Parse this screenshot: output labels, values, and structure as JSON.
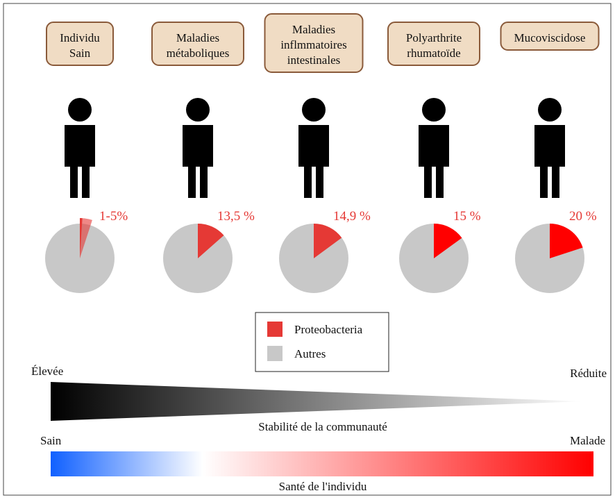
{
  "panels": [
    {
      "title": [
        "Individu",
        "Sain"
      ],
      "range": [
        1,
        5
      ],
      "label": "1-5%",
      "color": "#e53935"
    },
    {
      "title": [
        "Maladies",
        "métaboliques"
      ],
      "percent": 13.5,
      "label": "13,5 %",
      "color": "#e53935"
    },
    {
      "title": [
        "Maladies",
        "inflmmatoires",
        "intestinales"
      ],
      "percent": 14.9,
      "label": "14,9 %",
      "color": "#e53935"
    },
    {
      "title": [
        "Polyarthrite",
        "rhumatoïde"
      ],
      "percent": 15,
      "label": "15 %",
      "color": "#ff0000"
    },
    {
      "title": [
        "Mucoviscidose"
      ],
      "percent": 20,
      "label": "20 %",
      "color": "#ff0000"
    }
  ],
  "legend": [
    {
      "name": "Proteobacteria",
      "color": "#e53935"
    },
    {
      "name": "Autres",
      "color": "#c8c8c8"
    }
  ],
  "stability": {
    "left": "Élevée",
    "right": "Réduite",
    "caption": "Stabilité de la communauté"
  },
  "health": {
    "left": "Sain",
    "right": "Malade",
    "caption": "Santé de l'individu"
  }
}
